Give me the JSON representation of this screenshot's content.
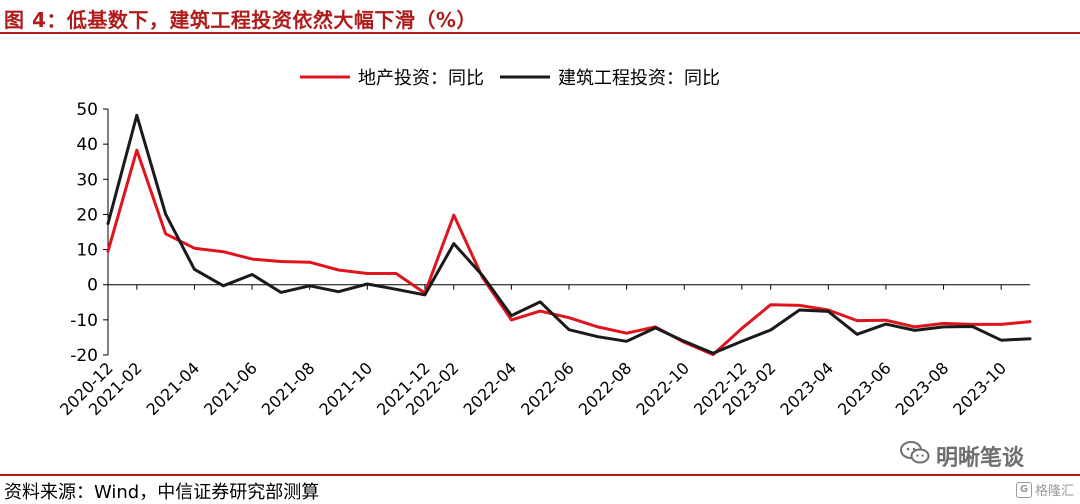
{
  "figure": {
    "title": "图 4：低基数下，建筑工程投资依然大幅下滑（%）",
    "source": "资料来源：Wind，中信证券研究部测算"
  },
  "watermark": {
    "text": "明晰笔谈",
    "icon": "wechat-icon"
  },
  "corner_logo": {
    "text": "格隆汇",
    "icon": "gelonghui-logo-icon"
  },
  "colors": {
    "accent": "#b01c1c",
    "series_red": "#e0141e",
    "series_black": "#1a1a1a"
  },
  "chart_data": {
    "type": "line",
    "title": "",
    "xlabel": "",
    "ylabel": "",
    "ylim": [
      -20,
      50
    ],
    "yticks": [
      -20,
      -10,
      0,
      10,
      20,
      30,
      40,
      50
    ],
    "legend_position": "top-center",
    "grid": false,
    "x": [
      "2020-12",
      "2021-02",
      "2021-03",
      "2021-04",
      "2021-05",
      "2021-06",
      "2021-07",
      "2021-08",
      "2021-09",
      "2021-10",
      "2021-11",
      "2021-12",
      "2022-02",
      "2022-03",
      "2022-04",
      "2022-05",
      "2022-06",
      "2022-07",
      "2022-08",
      "2022-09",
      "2022-10",
      "2022-11",
      "2022-12",
      "2023-02",
      "2023-03",
      "2023-04",
      "2023-05",
      "2023-06",
      "2023-07",
      "2023-08",
      "2023-09",
      "2023-10",
      "2023-11"
    ],
    "xtick_labels": [
      "2020-12",
      "2021-02",
      "2021-04",
      "2021-06",
      "2021-08",
      "2021-10",
      "2021-12",
      "2022-02",
      "2022-04",
      "2022-06",
      "2022-08",
      "2022-10",
      "2022-12",
      "2023-02",
      "2023-04",
      "2023-06",
      "2023-08",
      "2023-10"
    ],
    "series": [
      {
        "name": "地产投资：同比",
        "color": "#e0141e",
        "values": [
          9.5,
          38.3,
          14.5,
          10.4,
          9.4,
          7.3,
          6.6,
          6.4,
          4.2,
          3.2,
          3.2,
          -2.4,
          19.8,
          2.0,
          -10.0,
          -7.5,
          -9.4,
          -12.0,
          -13.8,
          -12.0,
          -16.4,
          -19.9,
          -12.4,
          -5.7,
          -5.9,
          -7.2,
          -10.2,
          -10.1,
          -12.0,
          -11.0,
          -11.3,
          -11.3,
          -10.5
        ]
      },
      {
        "name": "建筑工程投资：同比",
        "color": "#1a1a1a",
        "values": [
          17.4,
          48.2,
          20.1,
          4.4,
          -0.3,
          2.9,
          -2.2,
          -0.3,
          -2.0,
          0.2,
          -1.3,
          -2.9,
          11.7,
          2.6,
          -8.8,
          -4.9,
          -12.8,
          -14.8,
          -16.1,
          -12.3,
          -16.1,
          -19.5,
          -16.1,
          -12.9,
          -7.2,
          -7.6,
          -14.1,
          -11.2,
          -13.0,
          -12.0,
          -11.9,
          -15.8,
          -15.4
        ]
      }
    ]
  }
}
